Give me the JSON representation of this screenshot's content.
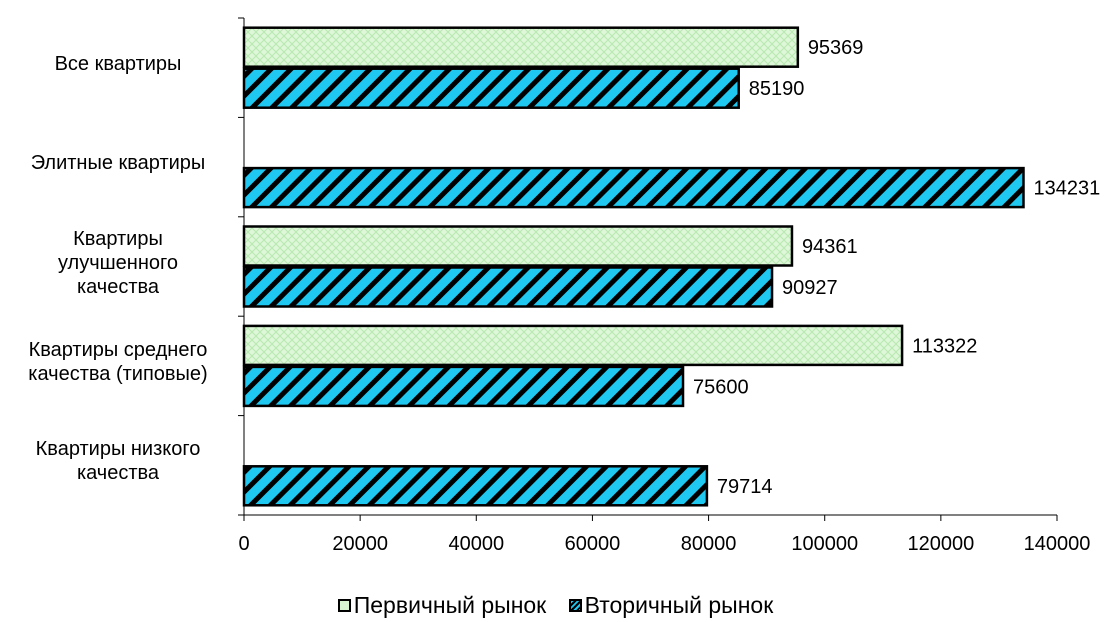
{
  "chart_data": {
    "type": "bar",
    "orientation": "horizontal",
    "categories": [
      "Все квартиры",
      "Элитные квартиры",
      "Квартиры\nулучшенного\nкачества",
      "Квартиры среднего\nкачества (типовые)",
      "Квартиры низкого\nкачества"
    ],
    "series": [
      {
        "name": "Первичный рынок",
        "values": [
          95369,
          null,
          94361,
          113322,
          null
        ]
      },
      {
        "name": "Вторичный рынок",
        "values": [
          85190,
          134231,
          90927,
          75600,
          79714
        ]
      }
    ],
    "data_labels": [
      [
        "95369",
        "",
        "94361",
        "113322",
        ""
      ],
      [
        "85190",
        "134231",
        "90927",
        "75600",
        "79714"
      ]
    ],
    "xlim": [
      0,
      140000
    ],
    "x_ticks": [
      "0",
      "20000",
      "40000",
      "60000",
      "80000",
      "100000",
      "120000",
      "140000"
    ],
    "grid": false,
    "legend_position": "bottom",
    "colors": {
      "primary_fill": "#d6f5d0",
      "secondary_fill": "#1fc8f0",
      "outline": "#000000"
    }
  }
}
